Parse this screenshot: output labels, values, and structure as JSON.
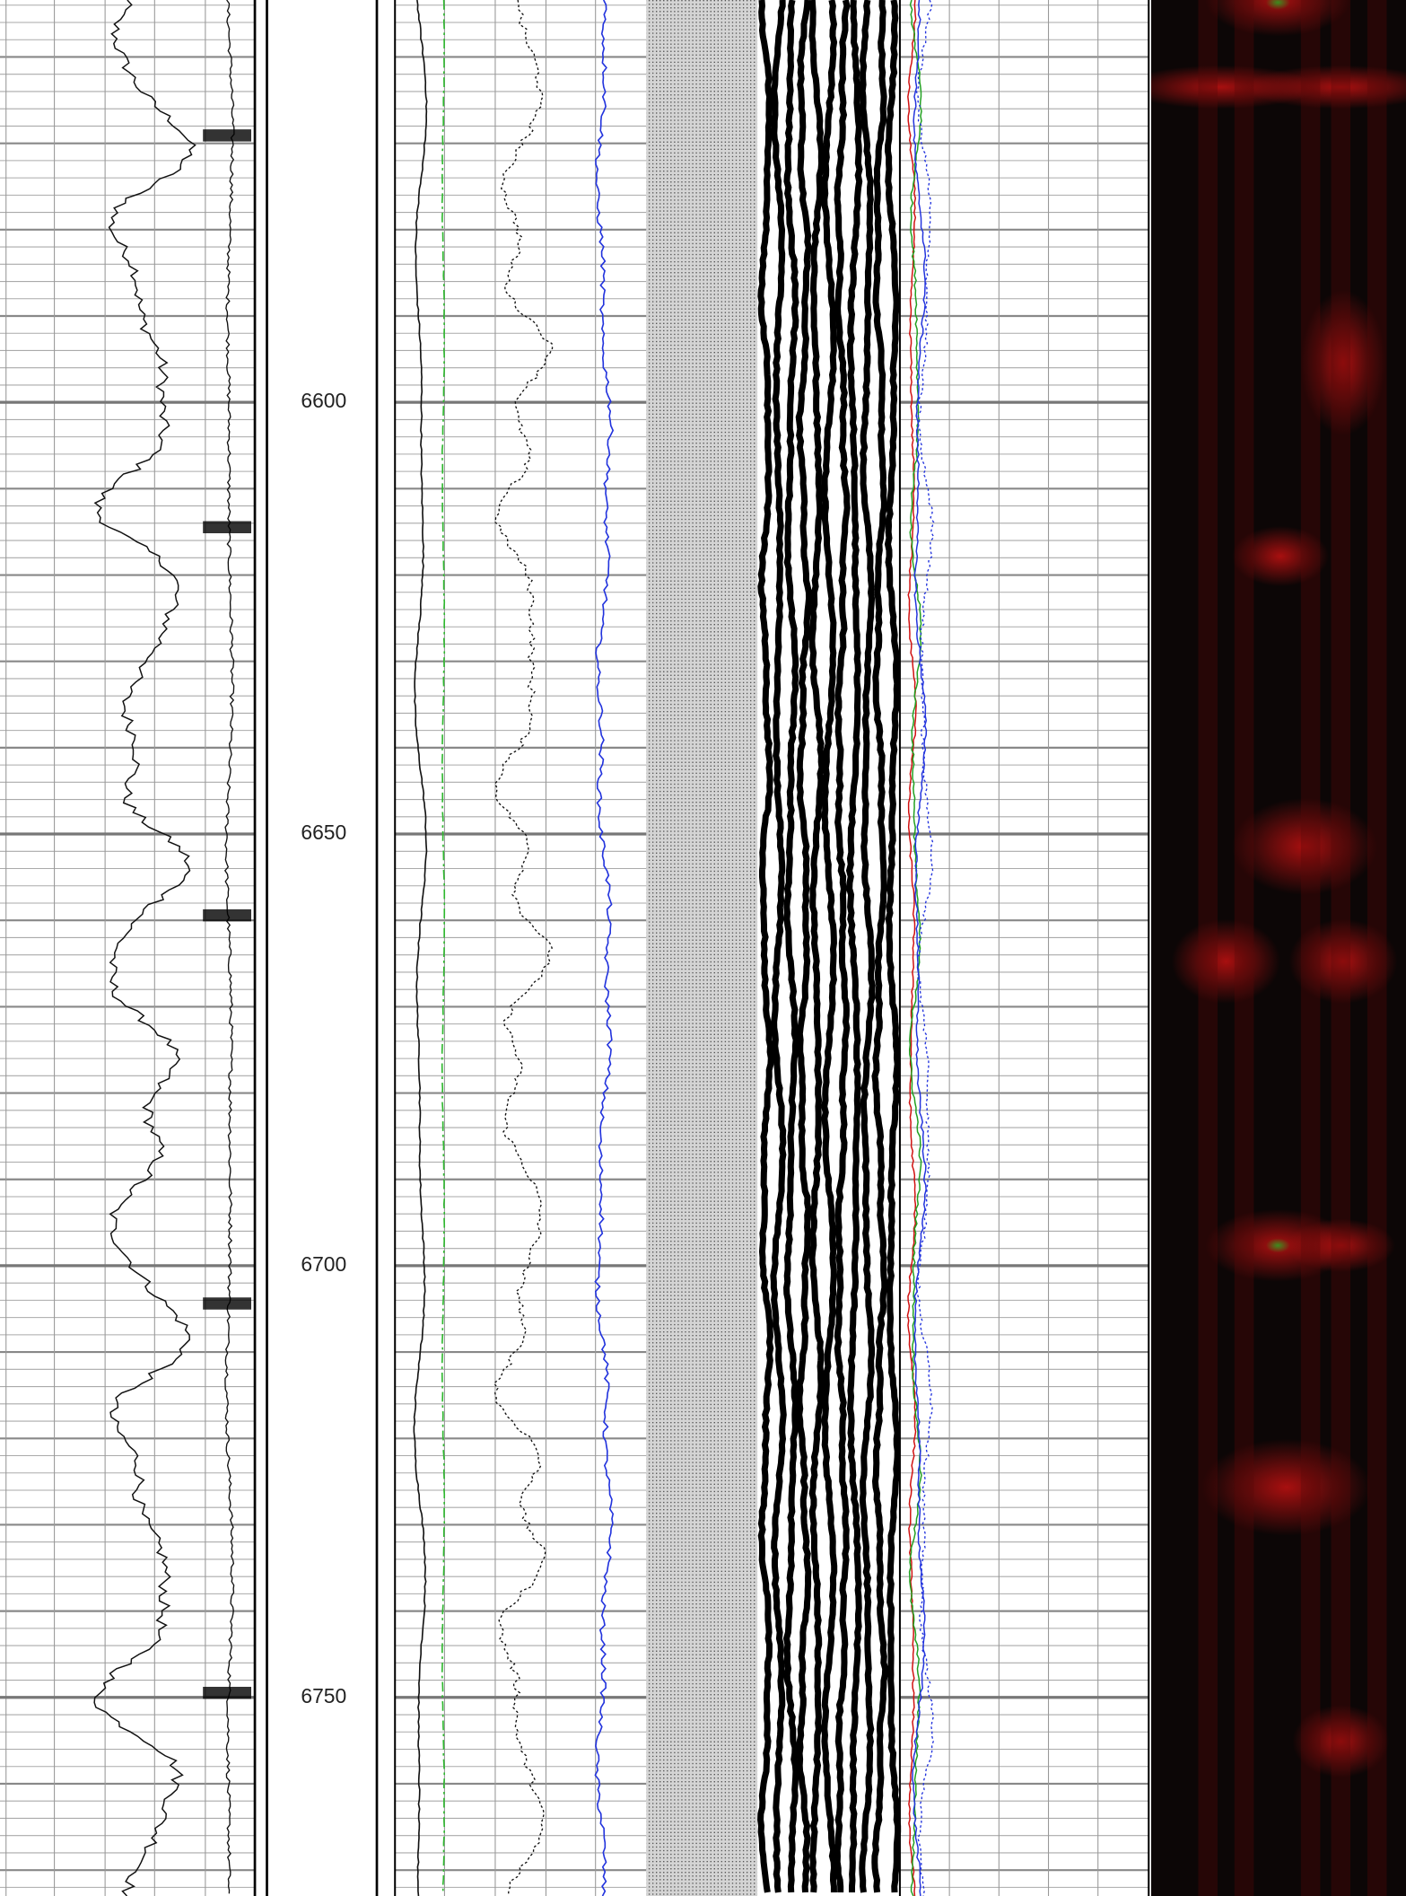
{
  "chart_data": {
    "type": "well-log",
    "ylim": [
      6553.4,
      6773.0
    ],
    "yticks": [
      6600,
      6650,
      6700,
      6750
    ],
    "grid": true
  }
}
